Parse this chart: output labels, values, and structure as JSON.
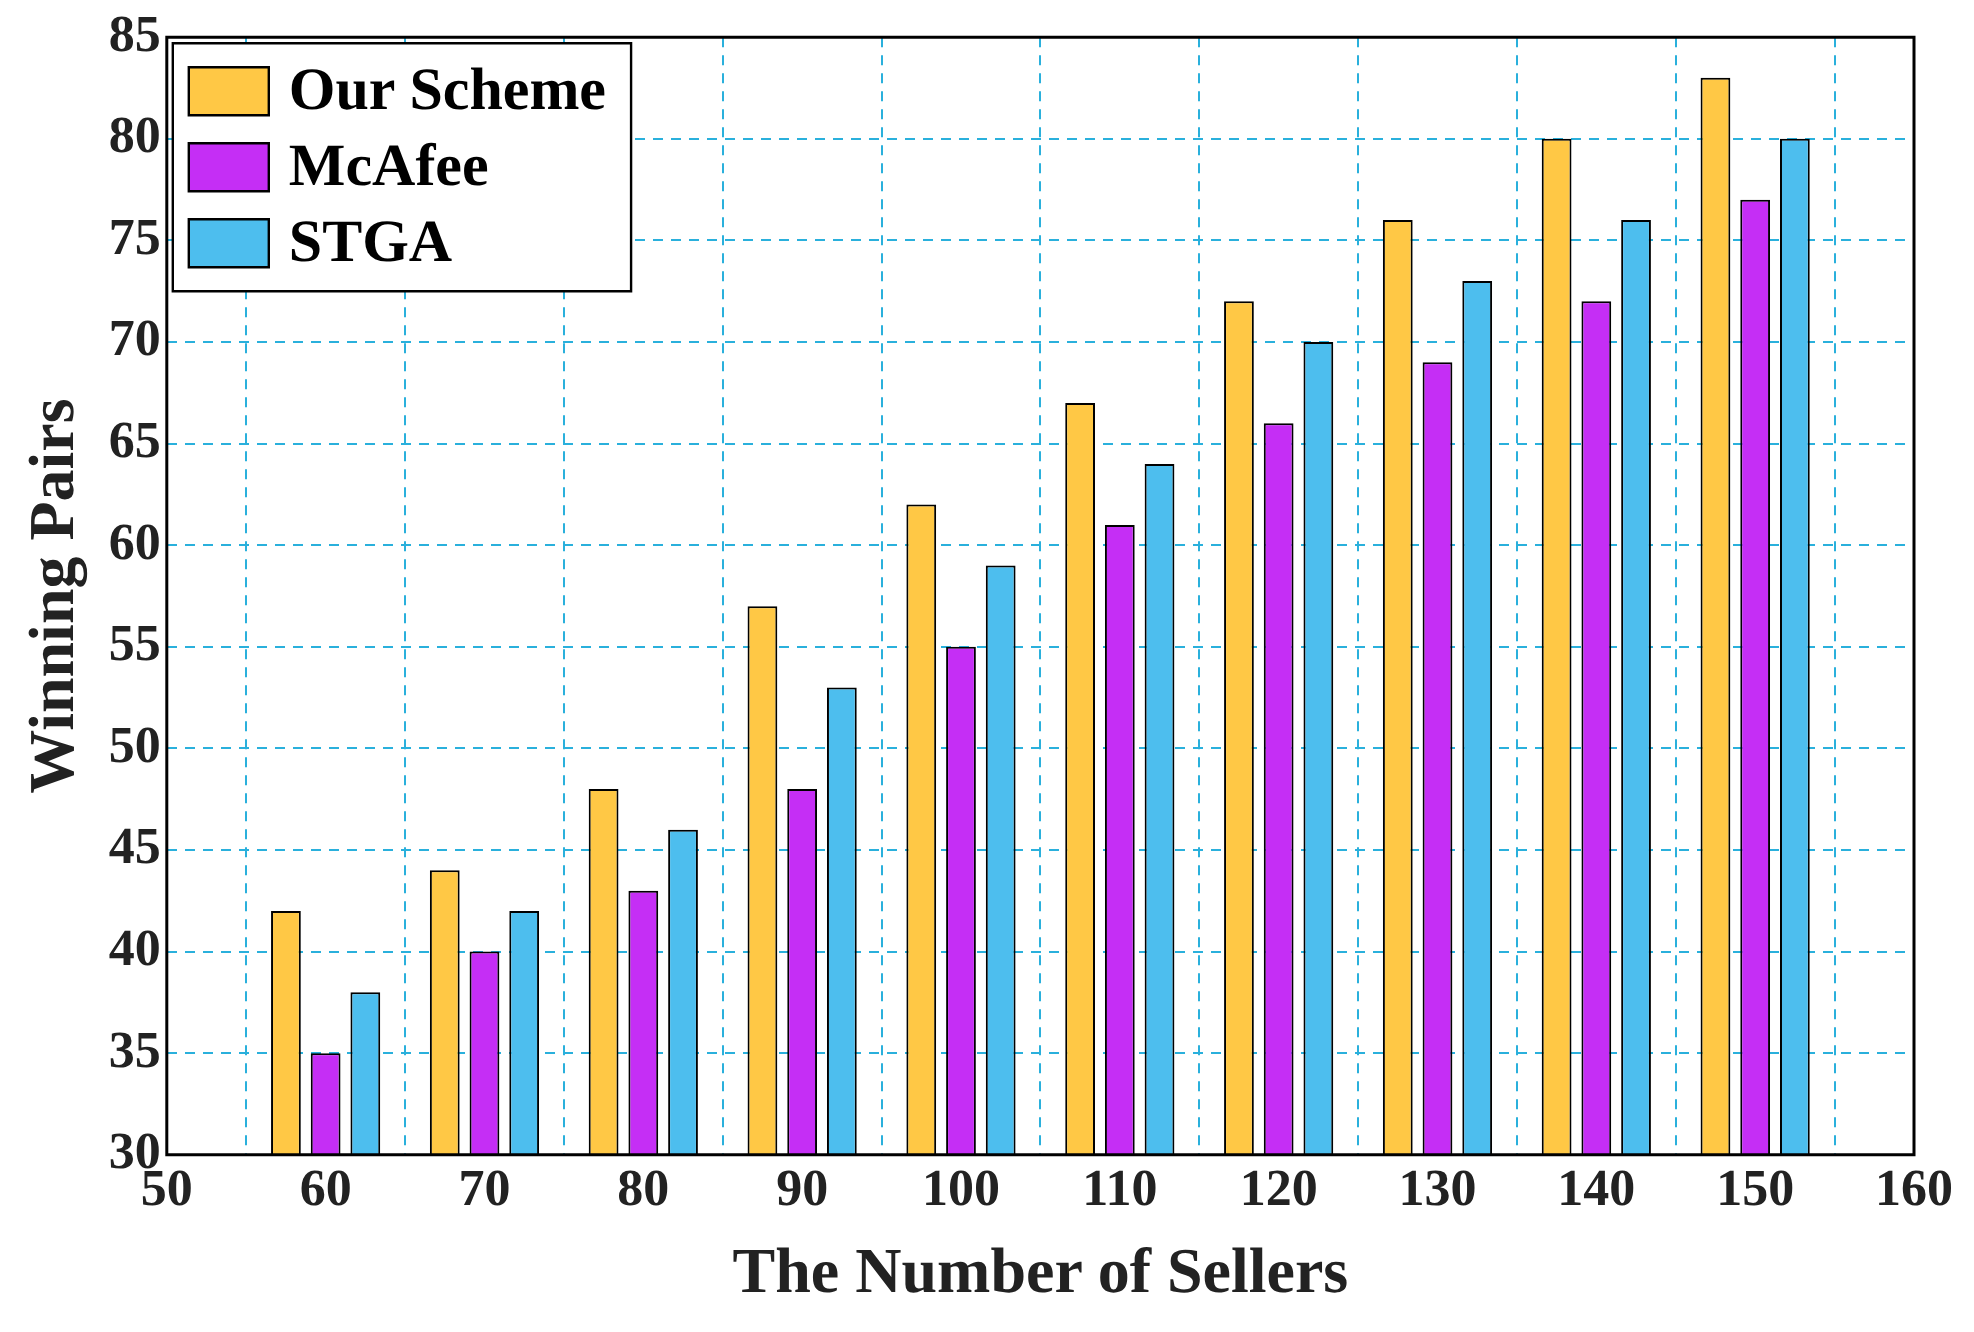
{
  "chart_data": {
    "type": "bar",
    "xlabel": "The Number of Sellers",
    "ylabel": "Winning Pairs",
    "x": [
      60,
      70,
      80,
      90,
      100,
      110,
      120,
      130,
      140,
      150
    ],
    "series": [
      {
        "name": "Our Scheme",
        "color": "#ffc845",
        "values": [
          42,
          44,
          48,
          57,
          62,
          67,
          72,
          76,
          80,
          83
        ]
      },
      {
        "name": "McAfee",
        "color": "#c52ef5",
        "values": [
          35,
          40,
          43,
          48,
          55,
          61,
          66,
          69,
          72,
          77
        ]
      },
      {
        "name": "STGA",
        "color": "#4dbeee",
        "values": [
          38,
          42,
          46,
          53,
          59,
          64,
          70,
          73,
          76,
          80
        ]
      }
    ],
    "xlim": [
      50,
      160
    ],
    "xticks": [
      50,
      60,
      70,
      80,
      90,
      100,
      110,
      120,
      130,
      140,
      150,
      160
    ],
    "ylim": [
      30,
      85
    ],
    "yticks": [
      30,
      35,
      40,
      45,
      50,
      55,
      60,
      65,
      70,
      75,
      80,
      85
    ],
    "grid": true,
    "legend": "top left"
  }
}
